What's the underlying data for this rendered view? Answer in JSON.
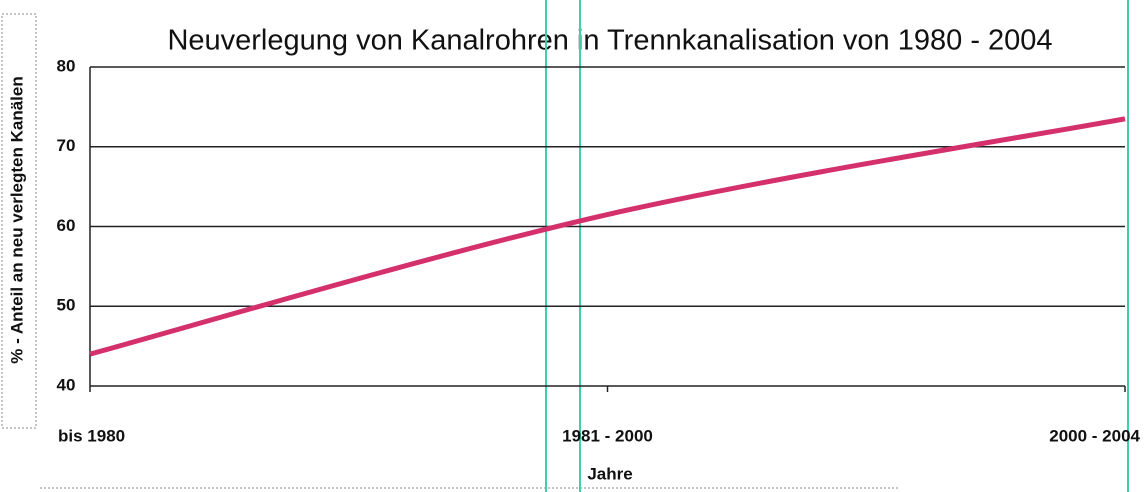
{
  "chart_data": {
    "type": "line",
    "title": "Neuverlegung von Kanalrohren in Trennkanalisation von 1980 - 2004",
    "y_label": "% - Anteil an neu verlegten Kanälen",
    "x_label": "Jahre",
    "categories": [
      "bis 1980",
      "1981 - 2000",
      "2000 - 2004"
    ],
    "values": [
      44,
      61.5,
      73.5
    ],
    "color": "#d4306c",
    "ylim": [
      40,
      80
    ],
    "yticks": [
      40,
      50,
      60,
      70,
      80
    ],
    "grid": true
  }
}
